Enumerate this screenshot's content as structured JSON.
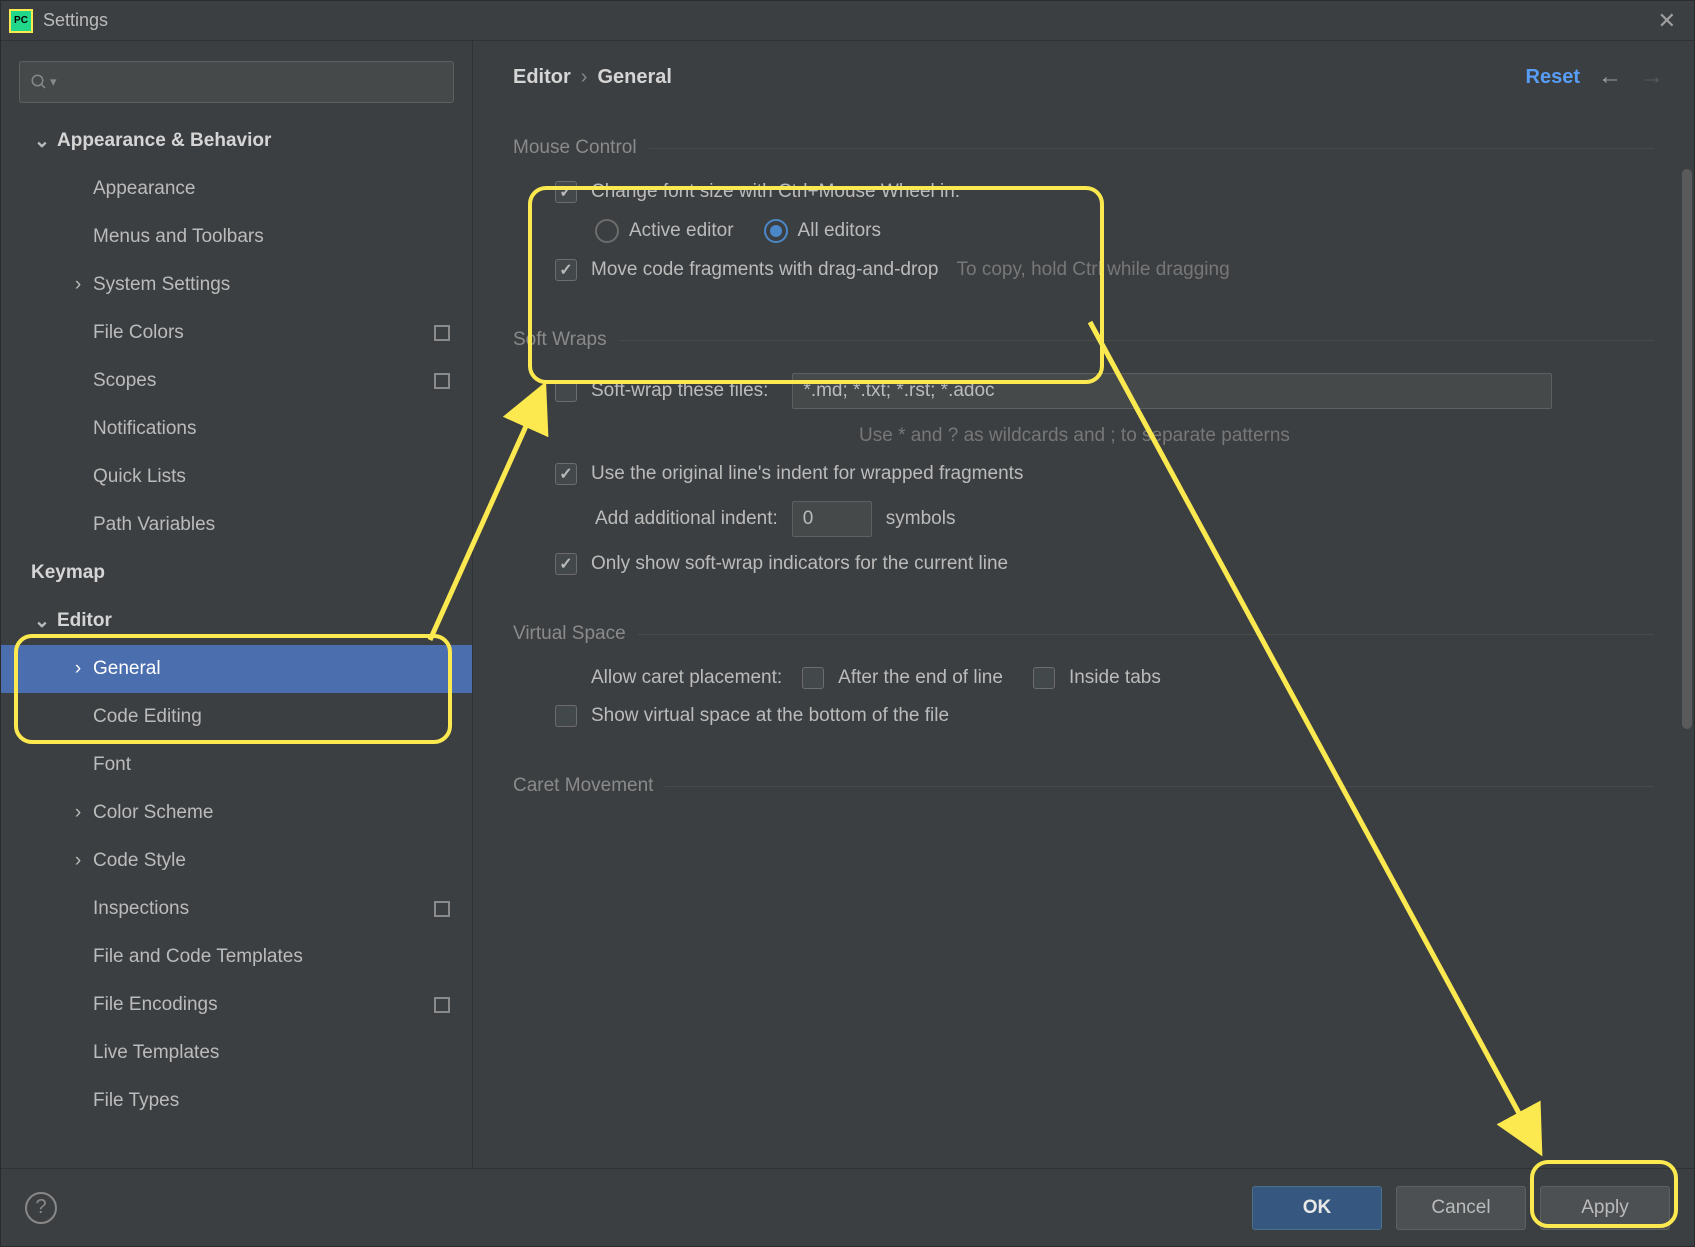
{
  "window": {
    "title": "Settings"
  },
  "breadcrumb": {
    "root": "Editor",
    "leaf": "General"
  },
  "header": {
    "reset": "Reset"
  },
  "search": {
    "placeholder": ""
  },
  "sidebar": {
    "items": [
      {
        "label": "Appearance & Behavior",
        "level": 1,
        "bold": true,
        "chevron": "down"
      },
      {
        "label": "Appearance",
        "level": 2
      },
      {
        "label": "Menus and Toolbars",
        "level": 2
      },
      {
        "label": "System Settings",
        "level": 2,
        "chevron": "right"
      },
      {
        "label": "File Colors",
        "level": 2,
        "proj": true
      },
      {
        "label": "Scopes",
        "level": 2,
        "proj": true
      },
      {
        "label": "Notifications",
        "level": 2
      },
      {
        "label": "Quick Lists",
        "level": 2
      },
      {
        "label": "Path Variables",
        "level": 2
      },
      {
        "label": "Keymap",
        "level": 1,
        "bold": true
      },
      {
        "label": "Editor",
        "level": 1,
        "bold": true,
        "chevron": "down"
      },
      {
        "label": "General",
        "level": 2,
        "chevron": "right",
        "selected": true
      },
      {
        "label": "Code Editing",
        "level": 2
      },
      {
        "label": "Font",
        "level": 2
      },
      {
        "label": "Color Scheme",
        "level": 2,
        "chevron": "right"
      },
      {
        "label": "Code Style",
        "level": 2,
        "chevron": "right"
      },
      {
        "label": "Inspections",
        "level": 2,
        "proj": true
      },
      {
        "label": "File and Code Templates",
        "level": 2
      },
      {
        "label": "File Encodings",
        "level": 2,
        "proj": true
      },
      {
        "label": "Live Templates",
        "level": 2
      },
      {
        "label": "File Types",
        "level": 2
      }
    ]
  },
  "sections": {
    "mouse": {
      "title": "Mouse Control",
      "change_font": "Change font size with Ctrl+Mouse Wheel in:",
      "radio_active": "Active editor",
      "radio_all": "All editors",
      "move_frag": "Move code fragments with drag-and-drop",
      "move_hint": "To copy, hold Ctrl while dragging"
    },
    "soft": {
      "title": "Soft Wraps",
      "softwrap_label": "Soft-wrap these files:",
      "softwrap_value": "*.md; *.txt; *.rst; *.adoc",
      "wildcard_hint": "Use * and ? as wildcards and ; to separate patterns",
      "orig_indent": "Use the original line's indent for wrapped fragments",
      "add_indent_label": "Add additional indent:",
      "add_indent_value": "0",
      "add_indent_suffix": "symbols",
      "only_current": "Only show soft-wrap indicators for the current line"
    },
    "virtual": {
      "title": "Virtual Space",
      "allow_label": "Allow caret placement:",
      "after_eol": "After the end of line",
      "inside_tabs": "Inside tabs",
      "show_bottom": "Show virtual space at the bottom of the file"
    },
    "caret": {
      "title": "Caret Movement"
    }
  },
  "footer": {
    "ok": "OK",
    "cancel": "Cancel",
    "apply": "Apply"
  },
  "colors": {
    "highlight": "#fce94f",
    "selection": "#4b6eaf",
    "accent": "#589df6"
  }
}
